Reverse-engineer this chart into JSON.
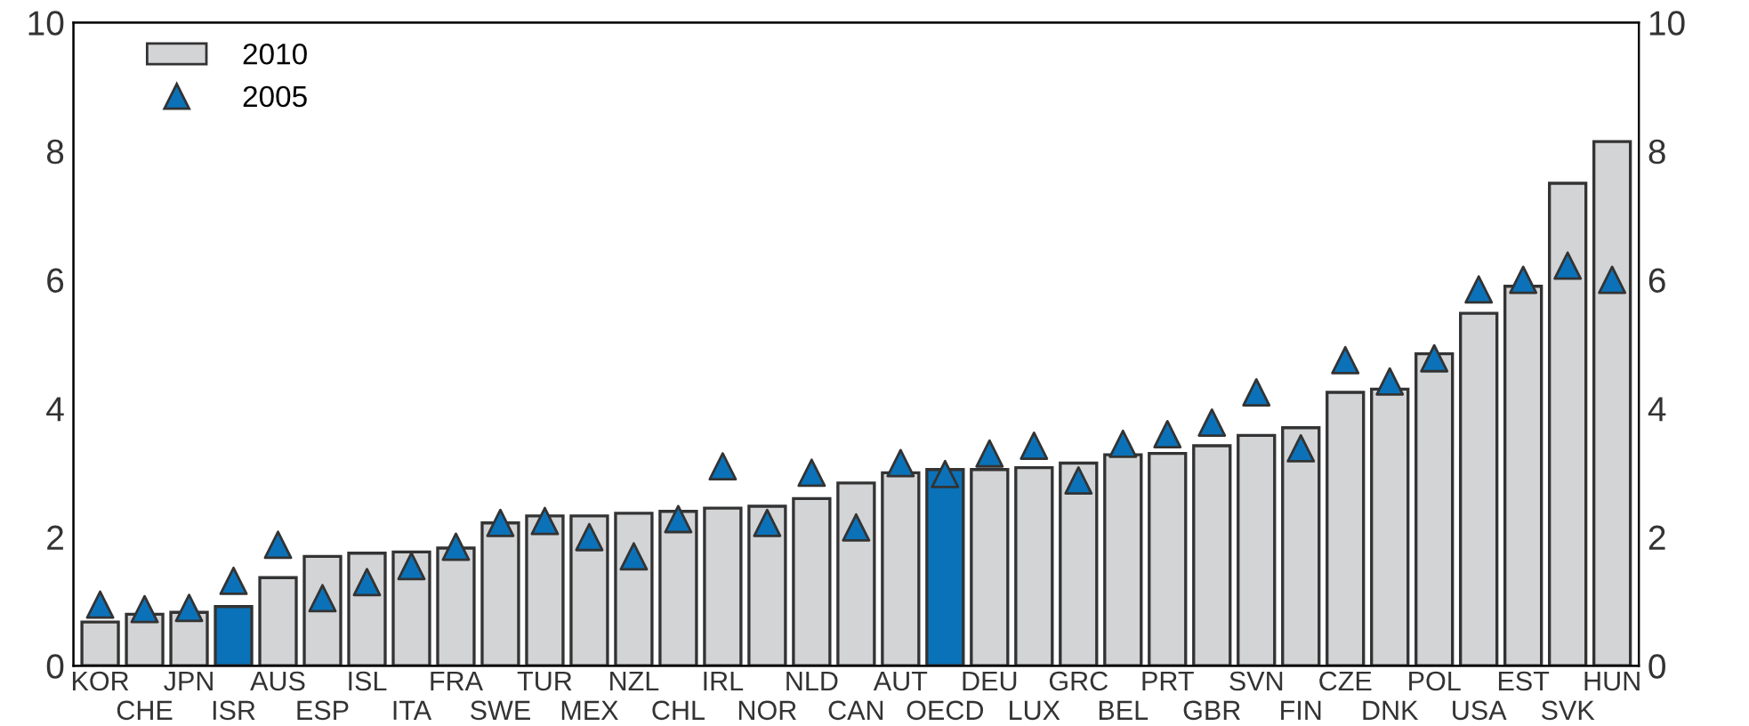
{
  "chart_data": {
    "type": "bar",
    "categories": [
      "KOR",
      "CHE",
      "JPN",
      "ISR",
      "AUS",
      "ESP",
      "ISL",
      "ITA",
      "FRA",
      "SWE",
      "TUR",
      "MEX",
      "NZL",
      "CHL",
      "IRL",
      "NOR",
      "NLD",
      "CAN",
      "AUT",
      "OECD",
      "DEU",
      "LUX",
      "GRC",
      "BEL",
      "PRT",
      "GBR",
      "SVN",
      "FIN",
      "CZE",
      "DNK",
      "POL",
      "USA",
      "EST",
      "SVK",
      "HUN"
    ],
    "series": [
      {
        "name": "2010",
        "color": "#d3d4d6",
        "colors": [
          "#d3d4d6",
          "#d3d4d6",
          "#d3d4d6",
          "#0a72b8",
          "#d3d4d6",
          "#d3d4d6",
          "#d3d4d6",
          "#d3d4d6",
          "#d3d4d6",
          "#d3d4d6",
          "#d3d4d6",
          "#d3d4d6",
          "#d3d4d6",
          "#d3d4d6",
          "#d3d4d6",
          "#d3d4d6",
          "#d3d4d6",
          "#d3d4d6",
          "#d3d4d6",
          "#0a72b8",
          "#d3d4d6",
          "#d3d4d6",
          "#d3d4d6",
          "#d3d4d6",
          "#d3d4d6",
          "#d3d4d6",
          "#d3d4d6",
          "#d3d4d6",
          "#d3d4d6",
          "#d3d4d6",
          "#d3d4d6",
          "#d3d4d6",
          "#d3d4d6",
          "#d3d4d6",
          "#d3d4d6"
        ],
        "values": [
          0.68,
          0.8,
          0.83,
          0.92,
          1.37,
          1.7,
          1.75,
          1.77,
          1.83,
          2.22,
          2.33,
          2.33,
          2.37,
          2.4,
          2.45,
          2.48,
          2.6,
          2.84,
          3.0,
          3.05,
          3.05,
          3.08,
          3.15,
          3.28,
          3.3,
          3.42,
          3.58,
          3.7,
          4.25,
          4.3,
          4.85,
          5.48,
          5.9,
          7.5,
          8.15
        ]
      },
      {
        "name": "2005",
        "type": "scatter",
        "marker": "triangle",
        "color": "#0b72b9",
        "values": [
          0.95,
          0.88,
          0.9,
          1.32,
          1.88,
          1.05,
          1.3,
          1.55,
          1.85,
          2.22,
          2.25,
          2.0,
          1.7,
          2.28,
          3.1,
          2.22,
          3.0,
          2.15,
          3.15,
          2.98,
          3.3,
          3.42,
          2.88,
          3.45,
          3.6,
          3.78,
          4.25,
          3.38,
          4.75,
          4.42,
          4.78,
          5.85,
          6.0,
          6.22,
          6.0
        ]
      }
    ],
    "ylim": [
      0,
      10
    ],
    "yticks": [
      0,
      2,
      4,
      6,
      8,
      10
    ],
    "y2lim": [
      0,
      10
    ],
    "y2ticks": [
      0,
      2,
      4,
      6,
      8,
      10
    ],
    "legend": "top left",
    "grid": false
  }
}
